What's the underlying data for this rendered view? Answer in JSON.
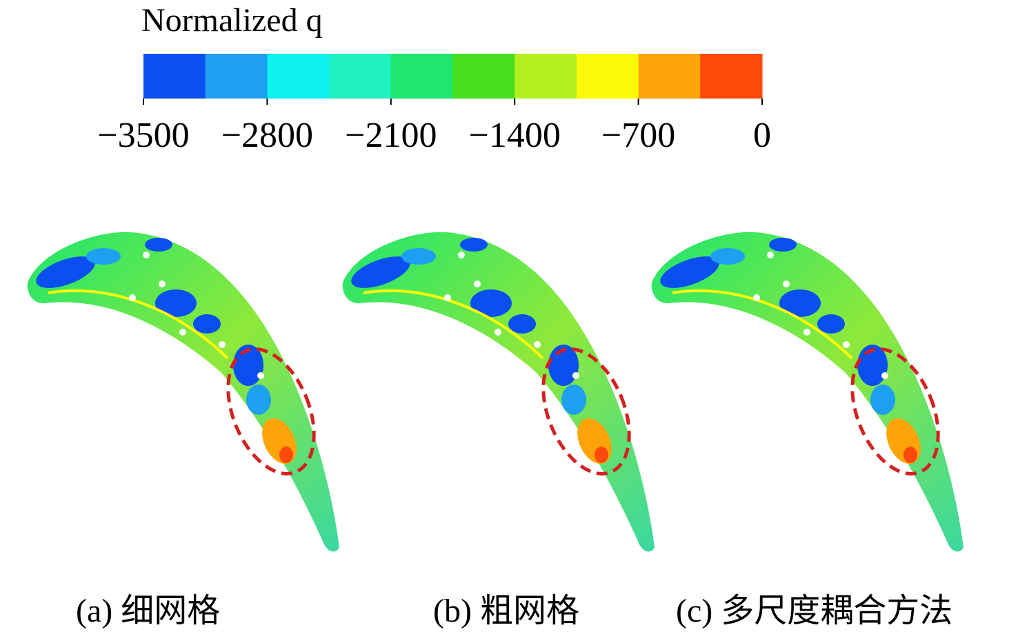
{
  "colorbar": {
    "title": "Normalized q",
    "lim": [
      -3500,
      0
    ],
    "ticks": [
      {
        "value": -3500,
        "label": "−3500"
      },
      {
        "value": -2800,
        "label": "−2800"
      },
      {
        "value": -2100,
        "label": "−2100"
      },
      {
        "value": -1400,
        "label": "−1400"
      },
      {
        "value": -700,
        "label": "−700"
      },
      0
    ],
    "colors": [
      "#0a4ff0",
      "#1ea0f0",
      "#0ff0f0",
      "#1ef0c0",
      "#1ee66e",
      "#46e01e",
      "#b4f01e",
      "#fafa0a",
      "#fca40a",
      "#fc4a0a"
    ]
  },
  "panels": [
    {
      "label": "(a) 细网格"
    },
    {
      "label": "(b) 粗网格"
    },
    {
      "label": "(c) 多尺度耦合方法"
    }
  ]
}
